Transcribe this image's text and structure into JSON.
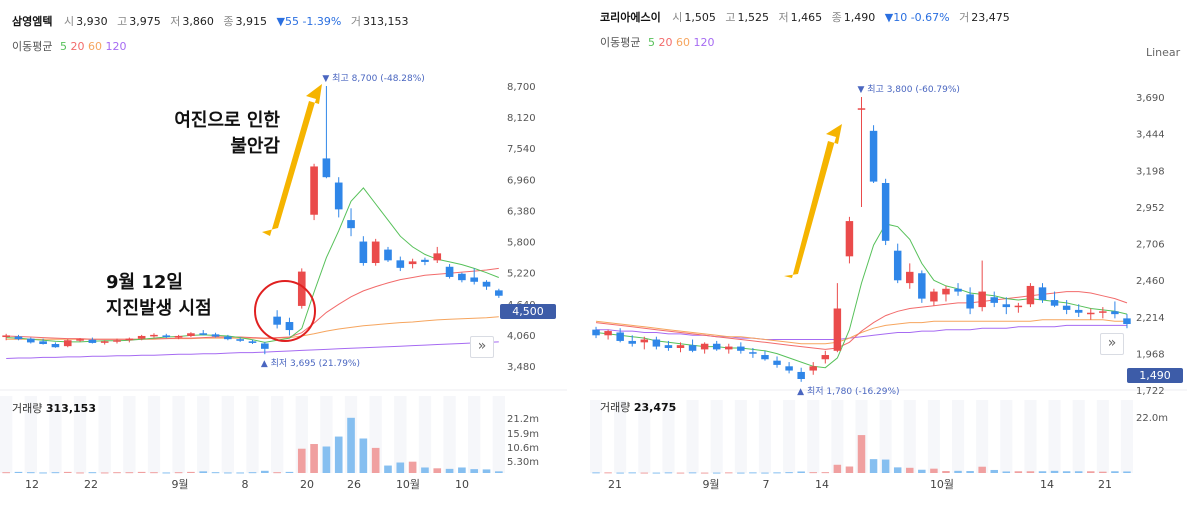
{
  "colors": {
    "up": "#ea4b4b",
    "down": "#2f86e8",
    "ma5": "#57c15a",
    "ma20": "#f26b6b",
    "ma60": "#f6a55e",
    "ma120": "#a66bf2",
    "vol_up": "#f0a0a0",
    "vol_down": "#86bff0",
    "arrow": "#f5b400",
    "circle": "#e02020",
    "badge": "#3d5ca8"
  },
  "left": {
    "header": {
      "name": "삼영엠텍",
      "open_label": "시",
      "open": "3,930",
      "high_label": "고",
      "high": "3,975",
      "low_label": "저",
      "low": "3,860",
      "close_label": "종",
      "close": "3,915",
      "change": "▼55 -1.39%",
      "vol_label": "거",
      "volume": "313,153"
    },
    "ma_legend": {
      "label": "이동평균",
      "p5": "5",
      "p20": "20",
      "p60": "60",
      "p120": "120"
    },
    "annot_main": [
      "여진으로 인한",
      "불안감"
    ],
    "annot_date": [
      "9월 12일",
      "지진발생 시점"
    ],
    "max_label": "▼ 최고 8,700 (-48.28%)",
    "min_label": "▲ 최저 3,695 (21.79%)",
    "price_badge": "4,500",
    "vol_header_label": "거래량",
    "vol_header_value": "313,153",
    "nav_icon": "»"
  },
  "right": {
    "header": {
      "name": "코리아에스이",
      "open_label": "시",
      "open": "1,505",
      "high_label": "고",
      "high": "1,525",
      "low_label": "저",
      "low": "1,465",
      "close_label": "종",
      "close": "1,490",
      "change": "▼10 -0.67%",
      "vol_label": "거",
      "volume": "23,475"
    },
    "ma_legend": {
      "label": "이동평균",
      "p5": "5",
      "p20": "20",
      "p60": "60",
      "p120": "120"
    },
    "max_label": "▼ 최고 3,800 (-60.79%)",
    "min_label": "▲ 최저 1,780 (-16.29%)",
    "price_badge": "1,490",
    "linear_label": "Linear",
    "vol_header_label": "거래량",
    "vol_header_value": "23,475",
    "nav_icon": "»"
  },
  "chart_data": [
    {
      "type": "candlestick",
      "title": "삼영엠텍",
      "y_ticks": [
        "8,700",
        "8,120",
        "7,540",
        "6,960",
        "6,380",
        "5,800",
        "5,220",
        "4,640",
        "4,060",
        "3,480"
      ],
      "ylim": [
        3480,
        8700
      ],
      "x_ticks": [
        "12",
        "22",
        "9월",
        "8",
        "20",
        "26",
        "10월",
        "10"
      ],
      "candles": [
        {
          "o": 4020,
          "h": 4080,
          "l": 3960,
          "c": 4050
        },
        {
          "o": 4030,
          "h": 4060,
          "l": 3960,
          "c": 3980
        },
        {
          "o": 3990,
          "h": 4010,
          "l": 3900,
          "c": 3920
        },
        {
          "o": 3940,
          "h": 3990,
          "l": 3880,
          "c": 3890
        },
        {
          "o": 3890,
          "h": 3920,
          "l": 3820,
          "c": 3830
        },
        {
          "o": 3850,
          "h": 3980,
          "l": 3830,
          "c": 3960
        },
        {
          "o": 3960,
          "h": 4000,
          "l": 3930,
          "c": 3980
        },
        {
          "o": 3970,
          "h": 4010,
          "l": 3900,
          "c": 3910
        },
        {
          "o": 3920,
          "h": 3960,
          "l": 3880,
          "c": 3940
        },
        {
          "o": 3940,
          "h": 3990,
          "l": 3900,
          "c": 3960
        },
        {
          "o": 3960,
          "h": 4010,
          "l": 3920,
          "c": 3990
        },
        {
          "o": 3990,
          "h": 4060,
          "l": 3960,
          "c": 4040
        },
        {
          "o": 4040,
          "h": 4090,
          "l": 4010,
          "c": 4060
        },
        {
          "o": 4050,
          "h": 4080,
          "l": 4000,
          "c": 4020
        },
        {
          "o": 4020,
          "h": 4060,
          "l": 3980,
          "c": 4040
        },
        {
          "o": 4040,
          "h": 4110,
          "l": 4020,
          "c": 4090
        },
        {
          "o": 4090,
          "h": 4150,
          "l": 4050,
          "c": 4070
        },
        {
          "o": 4070,
          "h": 4100,
          "l": 4010,
          "c": 4030
        },
        {
          "o": 4030,
          "h": 4060,
          "l": 3960,
          "c": 3980
        },
        {
          "o": 3980,
          "h": 4010,
          "l": 3930,
          "c": 3950
        },
        {
          "o": 3940,
          "h": 3970,
          "l": 3890,
          "c": 3910
        },
        {
          "o": 3900,
          "h": 3930,
          "l": 3700,
          "c": 3800
        },
        {
          "o": 4400,
          "h": 4520,
          "l": 4180,
          "c": 4250
        },
        {
          "o": 4300,
          "h": 4380,
          "l": 4050,
          "c": 4150
        },
        {
          "o": 4600,
          "h": 5300,
          "l": 4550,
          "c": 5240
        },
        {
          "o": 6300,
          "h": 7250,
          "l": 6200,
          "c": 7200
        },
        {
          "o": 7350,
          "h": 8700,
          "l": 6980,
          "c": 7000
        },
        {
          "o": 6900,
          "h": 7000,
          "l": 6250,
          "c": 6400
        },
        {
          "o": 6200,
          "h": 6420,
          "l": 5900,
          "c": 6050
        },
        {
          "o": 5800,
          "h": 5900,
          "l": 5350,
          "c": 5400
        },
        {
          "o": 5400,
          "h": 5850,
          "l": 5350,
          "c": 5800
        },
        {
          "o": 5650,
          "h": 5700,
          "l": 5420,
          "c": 5450
        },
        {
          "o": 5450,
          "h": 5520,
          "l": 5250,
          "c": 5310
        },
        {
          "o": 5380,
          "h": 5480,
          "l": 5300,
          "c": 5430
        },
        {
          "o": 5460,
          "h": 5500,
          "l": 5360,
          "c": 5420
        },
        {
          "o": 5450,
          "h": 5700,
          "l": 5400,
          "c": 5580
        },
        {
          "o": 5330,
          "h": 5380,
          "l": 5110,
          "c": 5140
        },
        {
          "o": 5200,
          "h": 5220,
          "l": 5040,
          "c": 5080
        },
        {
          "o": 5130,
          "h": 5300,
          "l": 5000,
          "c": 5050
        },
        {
          "o": 5050,
          "h": 5080,
          "l": 4900,
          "c": 4960
        },
        {
          "o": 4890,
          "h": 4920,
          "l": 4750,
          "c": 4790
        }
      ],
      "ma5": [
        4010,
        4000,
        3980,
        3960,
        3940,
        3930,
        3930,
        3940,
        3950,
        3950,
        3960,
        3980,
        4000,
        4020,
        4030,
        4050,
        4060,
        4050,
        4040,
        4010,
        3970,
        3920,
        3960,
        4000,
        4180,
        4860,
        5500,
        6000,
        6550,
        6800,
        6500,
        6200,
        5900,
        5700,
        5560,
        5470,
        5420,
        5370,
        5300,
        5220,
        5130
      ],
      "ma20": [
        4040,
        4030,
        4020,
        4010,
        4000,
        3990,
        3990,
        3980,
        3980,
        3980,
        3980,
        3980,
        3990,
        3990,
        4000,
        4000,
        4010,
        4020,
        4020,
        4020,
        4010,
        4000,
        4010,
        4020,
        4100,
        4280,
        4480,
        4630,
        4770,
        4880,
        4960,
        5030,
        5090,
        5130,
        5170,
        5190,
        5210,
        5230,
        5250,
        5270,
        5300
      ],
      "ma60": [
        3980,
        3980,
        3980,
        3980,
        3980,
        3980,
        3980,
        3980,
        3980,
        3980,
        3980,
        3980,
        3980,
        3990,
        3990,
        3990,
        4000,
        4000,
        4000,
        4000,
        4000,
        3990,
        4000,
        4010,
        4040,
        4080,
        4130,
        4170,
        4200,
        4230,
        4250,
        4270,
        4290,
        4300,
        4320,
        4340,
        4350,
        4360,
        4370,
        4380,
        4400
      ],
      "ma120": [
        3620,
        3630,
        3630,
        3640,
        3640,
        3650,
        3650,
        3660,
        3660,
        3670,
        3670,
        3680,
        3680,
        3690,
        3700,
        3700,
        3710,
        3710,
        3720,
        3730,
        3730,
        3740,
        3750,
        3760,
        3770,
        3780,
        3790,
        3800,
        3810,
        3820,
        3830,
        3840,
        3850,
        3860,
        3870,
        3880,
        3890,
        3900,
        3910,
        3920,
        3930
      ],
      "volume_ticks": [
        "21.2m",
        "15.9m",
        "10.6m",
        "5.30m"
      ],
      "volume_max": 25,
      "volume": [
        0.3,
        0.4,
        0.3,
        0.2,
        0.3,
        0.4,
        0.2,
        0.3,
        0.2,
        0.3,
        0.3,
        0.4,
        0.3,
        0.2,
        0.3,
        0.4,
        0.6,
        0.3,
        0.2,
        0.2,
        0.3,
        0.8,
        0.3,
        0.4,
        8.8,
        10.5,
        9.6,
        13.2,
        20.0,
        12.5,
        9.1,
        2.7,
        3.8,
        4.1,
        2.0,
        1.7,
        1.5,
        2.0,
        1.4,
        1.3,
        0.6
      ],
      "volume_up": [
        1,
        0,
        0,
        0,
        0,
        1,
        1,
        0,
        1,
        1,
        1,
        1,
        1,
        0,
        1,
        1,
        0,
        0,
        0,
        0,
        0,
        0,
        1,
        0,
        1,
        1,
        0,
        0,
        0,
        0,
        1,
        0,
        0,
        1,
        0,
        1,
        0,
        0,
        0,
        0,
        0
      ]
    },
    {
      "type": "candlestick",
      "title": "코리아에스이",
      "y_ticks": [
        "3,690",
        "3,444",
        "3,198",
        "2,952",
        "2,706",
        "2,460",
        "2,214",
        "1,968",
        "1,722"
      ],
      "ylim": [
        1722,
        3800
      ],
      "x_ticks": [
        "21",
        "9월",
        "7",
        "14",
        "10월",
        "14",
        "21"
      ],
      "candles": [
        {
          "o": 2150,
          "h": 2170,
          "l": 2090,
          "c": 2110
        },
        {
          "o": 2110,
          "h": 2150,
          "l": 2080,
          "c": 2140
        },
        {
          "o": 2130,
          "h": 2160,
          "l": 2060,
          "c": 2070
        },
        {
          "o": 2070,
          "h": 2110,
          "l": 2030,
          "c": 2050
        },
        {
          "o": 2060,
          "h": 2100,
          "l": 2010,
          "c": 2080
        },
        {
          "o": 2080,
          "h": 2100,
          "l": 2010,
          "c": 2030
        },
        {
          "o": 2040,
          "h": 2070,
          "l": 2000,
          "c": 2020
        },
        {
          "o": 2020,
          "h": 2060,
          "l": 1990,
          "c": 2040
        },
        {
          "o": 2040,
          "h": 2080,
          "l": 1990,
          "c": 2000
        },
        {
          "o": 2010,
          "h": 2060,
          "l": 1980,
          "c": 2050
        },
        {
          "o": 2050,
          "h": 2070,
          "l": 2000,
          "c": 2010
        },
        {
          "o": 2010,
          "h": 2050,
          "l": 1980,
          "c": 2030
        },
        {
          "o": 2030,
          "h": 2060,
          "l": 1980,
          "c": 2000
        },
        {
          "o": 1990,
          "h": 2020,
          "l": 1950,
          "c": 1980
        },
        {
          "o": 1970,
          "h": 2000,
          "l": 1930,
          "c": 1940
        },
        {
          "o": 1930,
          "h": 1960,
          "l": 1880,
          "c": 1900
        },
        {
          "o": 1890,
          "h": 1920,
          "l": 1840,
          "c": 1860
        },
        {
          "o": 1850,
          "h": 1880,
          "l": 1780,
          "c": 1800
        },
        {
          "o": 1860,
          "h": 1920,
          "l": 1830,
          "c": 1890
        },
        {
          "o": 1940,
          "h": 2000,
          "l": 1910,
          "c": 1970
        },
        {
          "o": 2000,
          "h": 2480,
          "l": 1990,
          "c": 2300
        },
        {
          "o": 2670,
          "h": 2950,
          "l": 2620,
          "c": 2920
        },
        {
          "o": 3710,
          "h": 3800,
          "l": 3020,
          "c": 3720
        },
        {
          "o": 3560,
          "h": 3600,
          "l": 3190,
          "c": 3200
        },
        {
          "o": 3190,
          "h": 3220,
          "l": 2750,
          "c": 2780
        },
        {
          "o": 2710,
          "h": 2760,
          "l": 2480,
          "c": 2500
        },
        {
          "o": 2480,
          "h": 2620,
          "l": 2440,
          "c": 2560
        },
        {
          "o": 2550,
          "h": 2570,
          "l": 2340,
          "c": 2370
        },
        {
          "o": 2350,
          "h": 2440,
          "l": 2320,
          "c": 2420
        },
        {
          "o": 2400,
          "h": 2460,
          "l": 2350,
          "c": 2440
        },
        {
          "o": 2440,
          "h": 2480,
          "l": 2390,
          "c": 2420
        },
        {
          "o": 2400,
          "h": 2450,
          "l": 2260,
          "c": 2300
        },
        {
          "o": 2310,
          "h": 2640,
          "l": 2280,
          "c": 2420
        },
        {
          "o": 2380,
          "h": 2420,
          "l": 2310,
          "c": 2340
        },
        {
          "o": 2330,
          "h": 2380,
          "l": 2260,
          "c": 2310
        },
        {
          "o": 2310,
          "h": 2340,
          "l": 2270,
          "c": 2320
        },
        {
          "o": 2330,
          "h": 2480,
          "l": 2310,
          "c": 2460
        },
        {
          "o": 2450,
          "h": 2480,
          "l": 2340,
          "c": 2360
        },
        {
          "o": 2360,
          "h": 2420,
          "l": 2310,
          "c": 2320
        },
        {
          "o": 2320,
          "h": 2360,
          "l": 2260,
          "c": 2290
        },
        {
          "o": 2290,
          "h": 2330,
          "l": 2240,
          "c": 2270
        },
        {
          "o": 2260,
          "h": 2300,
          "l": 2220,
          "c": 2270
        },
        {
          "o": 2270,
          "h": 2310,
          "l": 2230,
          "c": 2280
        },
        {
          "o": 2280,
          "h": 2350,
          "l": 2230,
          "c": 2260
        },
        {
          "o": 2230,
          "h": 2260,
          "l": 2160,
          "c": 2190
        }
      ],
      "ma5": [
        2130,
        2120,
        2110,
        2100,
        2090,
        2070,
        2060,
        2050,
        2040,
        2030,
        2030,
        2020,
        2020,
        2010,
        2000,
        1980,
        1950,
        1920,
        1890,
        1880,
        1950,
        2150,
        2480,
        2750,
        2900,
        2880,
        2790,
        2620,
        2500,
        2460,
        2440,
        2410,
        2400,
        2390,
        2370,
        2360,
        2370,
        2360,
        2350,
        2340,
        2320,
        2300,
        2290,
        2280,
        2260
      ],
      "ma20": [
        2200,
        2190,
        2180,
        2170,
        2160,
        2150,
        2140,
        2130,
        2120,
        2110,
        2100,
        2090,
        2080,
        2070,
        2060,
        2050,
        2040,
        2030,
        2020,
        2010,
        2020,
        2060,
        2140,
        2200,
        2250,
        2280,
        2300,
        2310,
        2320,
        2330,
        2340,
        2340,
        2350,
        2360,
        2370,
        2380,
        2390,
        2400,
        2410,
        2420,
        2420,
        2410,
        2390,
        2370,
        2340
      ],
      "ma60": [
        2210,
        2200,
        2190,
        2180,
        2170,
        2160,
        2150,
        2140,
        2130,
        2120,
        2110,
        2100,
        2100,
        2090,
        2080,
        2070,
        2060,
        2050,
        2050,
        2050,
        2060,
        2090,
        2130,
        2160,
        2180,
        2190,
        2200,
        2200,
        2210,
        2210,
        2210,
        2210,
        2210,
        2210,
        2210,
        2210,
        2210,
        2220,
        2220,
        2220,
        2220,
        2220,
        2220,
        2210,
        2210
      ],
      "ma120": [
        2150,
        2150,
        2140,
        2140,
        2130,
        2130,
        2120,
        2120,
        2110,
        2110,
        2100,
        2100,
        2090,
        2090,
        2080,
        2080,
        2080,
        2080,
        2080,
        2080,
        2080,
        2090,
        2100,
        2110,
        2120,
        2130,
        2130,
        2140,
        2140,
        2150,
        2150,
        2150,
        2160,
        2160,
        2160,
        2170,
        2170,
        2170,
        2170,
        2180,
        2180,
        2180,
        2180,
        2180,
        2180
      ],
      "volume_ticks": [
        "22.0m"
      ],
      "volume_max": 30,
      "volume": [
        0.3,
        0.3,
        0.2,
        0.3,
        0.2,
        0.2,
        0.3,
        0.2,
        0.3,
        0.2,
        0.2,
        0.3,
        0.2,
        0.3,
        0.2,
        0.3,
        0.4,
        0.7,
        0.4,
        0.4,
        3.8,
        3.0,
        17.5,
        6.4,
        6.2,
        2.6,
        2.4,
        1.5,
        2.0,
        0.9,
        1.0,
        0.9,
        2.9,
        1.4,
        0.7,
        0.8,
        0.8,
        0.8,
        1.0,
        0.8,
        0.8,
        0.8,
        0.6,
        0.8,
        0.7
      ],
      "volume_up": [
        0,
        1,
        0,
        0,
        1,
        0,
        0,
        1,
        0,
        1,
        0,
        1,
        0,
        0,
        0,
        0,
        0,
        0,
        1,
        1,
        1,
        1,
        1,
        0,
        0,
        0,
        1,
        0,
        1,
        1,
        0,
        0,
        1,
        0,
        0,
        1,
        1,
        0,
        0,
        0,
        0,
        1,
        1,
        0,
        0
      ]
    }
  ]
}
